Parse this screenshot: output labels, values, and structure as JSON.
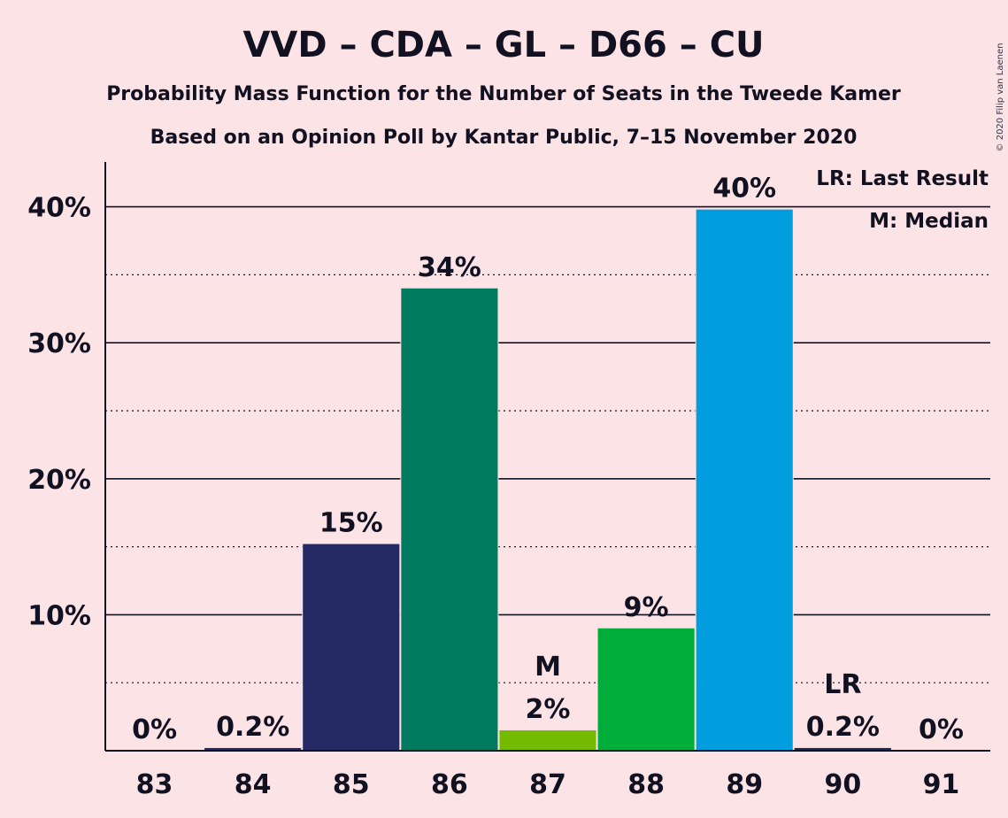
{
  "title": "VVD – CDA – GL – D66 – CU",
  "subtitle1": "Probability Mass Function for the Number of Seats in the Tweede Kamer",
  "subtitle2": "Based on an Opinion Poll by Kantar Public, 7–15 November 2020",
  "copyright": "© 2020 Filip van Laenen",
  "legend": {
    "lr": "LR: Last Result",
    "m": "M: Median"
  },
  "colors": {
    "background": "#fce4e6",
    "text": "#111122"
  },
  "chart_data": {
    "type": "bar",
    "categories": [
      "83",
      "84",
      "85",
      "86",
      "87",
      "88",
      "89",
      "90",
      "91"
    ],
    "values": [
      0,
      0.2,
      15.2,
      34.0,
      1.5,
      9.0,
      39.8,
      0.2,
      0
    ],
    "labels": [
      "0%",
      "0.2%",
      "15%",
      "34%",
      "2%",
      "9%",
      "40%",
      "0.2%",
      "0%"
    ],
    "colors": [
      "#252a64",
      "#252a64",
      "#252a64",
      "#007b5f",
      "#74bb00",
      "#00ac3a",
      "#009edf",
      "#1a2a52",
      "#252a64"
    ],
    "markers": {
      "87": "M",
      "90": "LR"
    },
    "yticks": [
      10,
      20,
      30,
      40
    ],
    "yticklabels": [
      "10%",
      "20%",
      "30%",
      "40%"
    ],
    "ylim": [
      0,
      42
    ],
    "grid": true
  }
}
